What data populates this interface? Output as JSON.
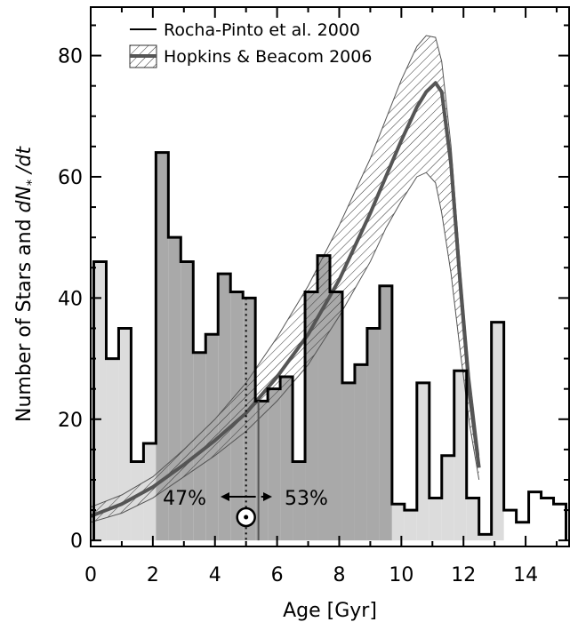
{
  "chart_data": {
    "type": "bar",
    "title": "",
    "xlabel": "Age [Gyr]",
    "ylabel_text": "Number of Stars and ",
    "ylabel_math": "dN",
    "ylabel_sub": "*",
    "ylabel_tail": " /dt",
    "xlim": [
      0,
      15.4
    ],
    "ylim": [
      -1,
      88
    ],
    "xticks": [
      0,
      2,
      4,
      6,
      8,
      10,
      12,
      14
    ],
    "yticks": [
      0,
      20,
      40,
      60,
      80
    ],
    "grid": false,
    "legend_position": "top-left",
    "series": [
      {
        "name": "Rocha-Pinto et al. 2000",
        "style": "histogram",
        "bin_width": 0.4,
        "x_start": 0.1,
        "values": [
          46,
          30,
          35,
          13,
          16,
          64,
          50,
          46,
          31,
          34,
          44,
          41,
          40,
          23,
          25,
          27,
          13,
          41,
          47,
          41,
          26,
          29,
          35,
          42,
          6,
          5,
          26,
          7,
          14,
          28,
          7,
          1,
          36,
          5,
          3,
          8,
          7,
          6
        ]
      },
      {
        "name": "Hopkins & Beacom 2006",
        "style": "band",
        "x": [
          0.0,
          1.0,
          2.0,
          3.0,
          4.0,
          5.0,
          6.0,
          7.0,
          8.0,
          9.0,
          9.5,
          10.0,
          10.5,
          10.8,
          11.1,
          11.3,
          11.6,
          11.9,
          12.2,
          12.5
        ],
        "center": [
          4.0,
          6.0,
          8.8,
          12.5,
          16.5,
          21,
          27,
          34,
          43,
          54,
          60,
          66,
          71.5,
          74,
          75.5,
          74,
          62,
          42,
          24,
          12
        ],
        "upper": [
          5.5,
          7.5,
          10.5,
          15,
          20,
          26,
          33.5,
          42,
          52,
          63,
          69.5,
          76,
          81.5,
          83.3,
          83,
          79,
          65,
          45,
          27,
          14
        ],
        "lower": [
          3.0,
          4.5,
          7.0,
          10.5,
          14,
          18,
          23,
          29,
          37,
          46,
          51.5,
          56,
          60,
          60.7,
          59,
          54,
          44,
          31,
          19,
          10
        ]
      }
    ],
    "shading": [
      {
        "x0": 0.1,
        "x1": 2.1,
        "style": "light"
      },
      {
        "x0": 2.1,
        "x1": 9.7,
        "style": "dark"
      },
      {
        "x0": 9.7,
        "x1": 13.3,
        "style": "light"
      }
    ],
    "markers": {
      "sun_age": 5.0,
      "median_age": 5.4,
      "left_pct": "47%",
      "right_pct": "53%"
    },
    "colors": {
      "axis": "#000000",
      "histogram": "#000000",
      "band_line": "#555555",
      "band_hatch": "#333333",
      "shade_light": "#dcdcdc",
      "shade_dark": "#a9a9a9"
    }
  }
}
